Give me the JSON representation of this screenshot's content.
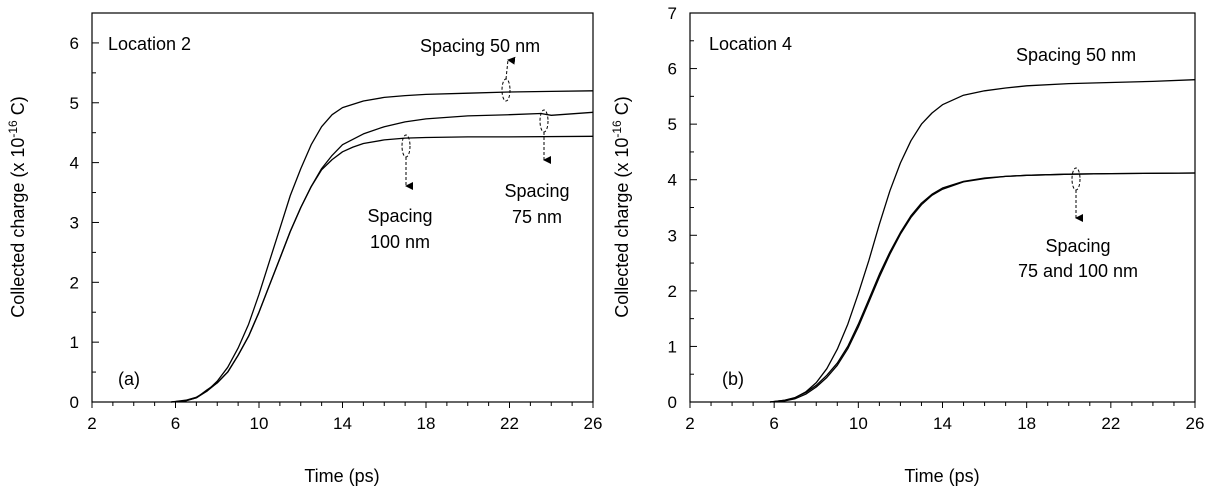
{
  "chart_data": [
    {
      "type": "line",
      "panel_label": "(a)",
      "location_label": "Location 2",
      "xlabel": "Time (ps)",
      "ylabel_prefix": "Collected charge (x 10",
      "ylabel_exp": "-16",
      "ylabel_suffix": " C)",
      "xlim": [
        2,
        26
      ],
      "ylim": [
        0,
        6.5
      ],
      "x_ticks": [
        2,
        6,
        10,
        14,
        18,
        22,
        26
      ],
      "x_tick_labels": [
        "2",
        "6",
        "10",
        "14",
        "18",
        "22",
        "26"
      ],
      "y_ticks": [
        0,
        1,
        2,
        3,
        4,
        5,
        6
      ],
      "y_tick_labels": [
        "0",
        "1",
        "2",
        "3",
        "4",
        "5",
        "6"
      ],
      "series": [
        {
          "x": [
            5.8,
            6.5,
            7,
            7.5,
            8,
            8.5,
            9,
            9.5,
            10,
            10.5,
            11,
            11.5,
            12,
            12.5,
            13,
            13.5,
            14,
            15,
            16,
            17,
            18,
            20,
            22,
            24,
            26
          ],
          "y": [
            0,
            0.03,
            0.08,
            0.18,
            0.35,
            0.58,
            0.9,
            1.3,
            1.8,
            2.35,
            2.9,
            3.45,
            3.9,
            4.3,
            4.6,
            4.8,
            4.92,
            5.03,
            5.09,
            5.12,
            5.14,
            5.16,
            5.18,
            5.19,
            5.2
          ]
        },
        {
          "x": [
            5.8,
            6.5,
            7,
            7.5,
            8,
            8.5,
            9,
            9.5,
            10,
            10.5,
            11,
            11.5,
            12,
            12.5,
            13,
            13.5,
            14,
            15,
            16,
            17,
            18,
            20,
            22,
            23.5,
            24,
            26
          ],
          "y": [
            0,
            0.02,
            0.07,
            0.2,
            0.32,
            0.5,
            0.78,
            1.1,
            1.5,
            1.95,
            2.4,
            2.85,
            3.25,
            3.6,
            3.9,
            4.12,
            4.3,
            4.48,
            4.6,
            4.68,
            4.73,
            4.78,
            4.8,
            4.82,
            4.79,
            4.84
          ]
        },
        {
          "x": [
            5.8,
            6.5,
            7,
            7.5,
            8,
            8.5,
            9,
            9.5,
            10,
            10.5,
            11,
            11.5,
            12,
            12.5,
            13,
            13.5,
            14,
            14.5,
            15,
            16,
            17,
            18,
            20,
            22,
            26
          ],
          "y": [
            0,
            0.02,
            0.07,
            0.18,
            0.32,
            0.5,
            0.78,
            1.1,
            1.5,
            1.95,
            2.4,
            2.85,
            3.25,
            3.6,
            3.88,
            4.05,
            4.18,
            4.26,
            4.32,
            4.38,
            4.41,
            4.42,
            4.43,
            4.43,
            4.44
          ]
        }
      ],
      "annotations": [
        {
          "text": "Spacing 50 nm"
        },
        {
          "text": "Spacing"
        },
        {
          "text": "100 nm"
        },
        {
          "text": "Spacing"
        },
        {
          "text": "75 nm"
        }
      ]
    },
    {
      "type": "line",
      "panel_label": "(b)",
      "location_label": "Location 4",
      "xlabel": "Time (ps)",
      "ylabel_prefix": "Collected charge (x 10",
      "ylabel_exp": "-16",
      "ylabel_suffix": " C)",
      "xlim": [
        2,
        26
      ],
      "ylim": [
        0,
        7
      ],
      "x_ticks": [
        2,
        6,
        10,
        14,
        18,
        22,
        26
      ],
      "x_tick_labels": [
        "2",
        "6",
        "10",
        "14",
        "18",
        "22",
        "26"
      ],
      "y_ticks": [
        0,
        1,
        2,
        3,
        4,
        5,
        6,
        7
      ],
      "y_tick_labels": [
        "0",
        "1",
        "2",
        "3",
        "4",
        "5",
        "6",
        "7"
      ],
      "series": [
        {
          "x": [
            5.8,
            6.5,
            7,
            7.5,
            8,
            8.5,
            9,
            9.5,
            10,
            10.5,
            11,
            11.5,
            12,
            12.5,
            13,
            13.5,
            14,
            15,
            16,
            17,
            18,
            20,
            22,
            24,
            26
          ],
          "y": [
            0,
            0.03,
            0.08,
            0.18,
            0.35,
            0.6,
            0.95,
            1.4,
            1.95,
            2.55,
            3.2,
            3.8,
            4.3,
            4.7,
            5.0,
            5.2,
            5.35,
            5.52,
            5.6,
            5.65,
            5.69,
            5.73,
            5.75,
            5.77,
            5.8
          ]
        },
        {
          "x": [
            5.8,
            6.5,
            7,
            7.5,
            8,
            8.5,
            9,
            9.5,
            10,
            10.5,
            11,
            11.5,
            12,
            12.5,
            13,
            13.5,
            14,
            15,
            16,
            17,
            18,
            20,
            22,
            26
          ],
          "y": [
            0,
            0.03,
            0.08,
            0.17,
            0.3,
            0.48,
            0.7,
            1.0,
            1.4,
            1.85,
            2.3,
            2.7,
            3.05,
            3.35,
            3.58,
            3.74,
            3.85,
            3.97,
            4.03,
            4.06,
            4.08,
            4.1,
            4.11,
            4.12
          ]
        },
        {
          "x": [
            5.8,
            6.5,
            7,
            7.5,
            8,
            8.5,
            9,
            9.5,
            10,
            10.5,
            11,
            11.5,
            12,
            12.5,
            13,
            13.5,
            14,
            15,
            16,
            17,
            18,
            20,
            22,
            26
          ],
          "y": [
            0,
            0.02,
            0.06,
            0.14,
            0.27,
            0.44,
            0.66,
            0.96,
            1.35,
            1.8,
            2.25,
            2.66,
            3.02,
            3.32,
            3.55,
            3.72,
            3.83,
            3.96,
            4.02,
            4.06,
            4.08,
            4.1,
            4.11,
            4.12
          ]
        }
      ],
      "annotations": [
        {
          "text": "Spacing 50 nm"
        },
        {
          "text": "Spacing"
        },
        {
          "text": "75 and 100 nm"
        }
      ]
    }
  ]
}
